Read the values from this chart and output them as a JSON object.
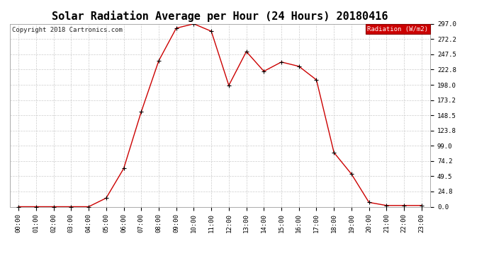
{
  "title": "Solar Radiation Average per Hour (24 Hours) 20180416",
  "copyright": "Copyright 2018 Cartronics.com",
  "legend_label": "Radiation (W/m2)",
  "hours": [
    0,
    1,
    2,
    3,
    4,
    5,
    6,
    7,
    8,
    9,
    10,
    11,
    12,
    13,
    14,
    15,
    16,
    17,
    18,
    19,
    20,
    21,
    22,
    23
  ],
  "hour_labels": [
    "00:00",
    "01:00",
    "02:00",
    "03:00",
    "04:00",
    "05:00",
    "06:00",
    "07:00",
    "08:00",
    "09:00",
    "10:00",
    "11:00",
    "12:00",
    "13:00",
    "14:00",
    "15:00",
    "16:00",
    "17:00",
    "18:00",
    "19:00",
    "20:00",
    "21:00",
    "22:00",
    "23:00"
  ],
  "values": [
    0.0,
    0.0,
    0.0,
    0.0,
    0.0,
    14.0,
    62.0,
    154.0,
    237.0,
    290.0,
    297.0,
    285.0,
    197.0,
    252.0,
    220.0,
    235.0,
    228.0,
    206.0,
    88.0,
    53.0,
    7.0,
    2.0,
    2.0,
    2.0
  ],
  "line_color": "#cc0000",
  "marker_color": "#000000",
  "bg_color": "#ffffff",
  "grid_color": "#cccccc",
  "ylim": [
    0.0,
    297.0
  ],
  "yticks": [
    0.0,
    24.8,
    49.5,
    74.2,
    99.0,
    123.8,
    148.5,
    173.2,
    198.0,
    222.8,
    247.5,
    272.2,
    297.0
  ],
  "title_fontsize": 11,
  "tick_fontsize": 6.5,
  "legend_bg": "#cc0000",
  "legend_text_color": "#ffffff",
  "copyright_fontsize": 6.5
}
